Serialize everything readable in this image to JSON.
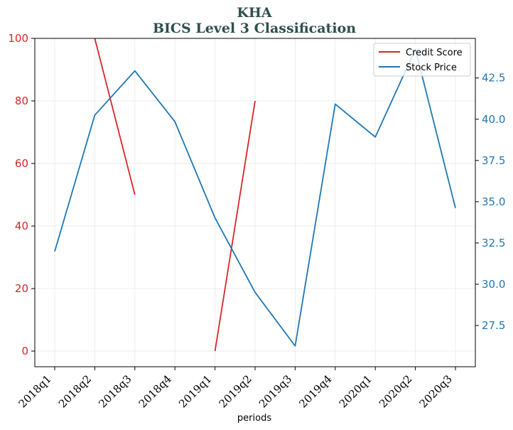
{
  "chart_data": {
    "type": "line",
    "title": "KHA",
    "subtitle": "BICS Level 3 Classification",
    "xlabel": "periods",
    "categories": [
      "2018q1",
      "2018q2",
      "2018q3",
      "2018q4",
      "2019q1",
      "2019q2",
      "2019q3",
      "2019q4",
      "2020q1",
      "2020q2",
      "2020q3"
    ],
    "series": [
      {
        "name": "Credit Score",
        "axis": "left",
        "color": "#d62728",
        "values": [
          null,
          100,
          50,
          null,
          0,
          80,
          null,
          null,
          null,
          null,
          null
        ]
      },
      {
        "name": "Stock Price",
        "axis": "right",
        "color": "#1f77b4",
        "values": [
          31.99,
          40.25,
          42.93,
          39.85,
          34.02,
          29.51,
          26.26,
          40.92,
          38.92,
          44.24,
          34.62
        ]
      }
    ],
    "ylim_left": [
      -5,
      100
    ],
    "yticks_left": [
      0,
      20,
      40,
      60,
      80,
      100
    ],
    "ylim_right": [
      25.0,
      44.9
    ],
    "yticks_right": [
      "27.5",
      "30.0",
      "32.5",
      "35.0",
      "37.5",
      "40.0",
      "42.5"
    ],
    "left_axis_color": "#d62728",
    "right_axis_color": "#1f77b4",
    "title_color": "#2f4f4f",
    "grid": true,
    "legend_position": "top-right"
  }
}
